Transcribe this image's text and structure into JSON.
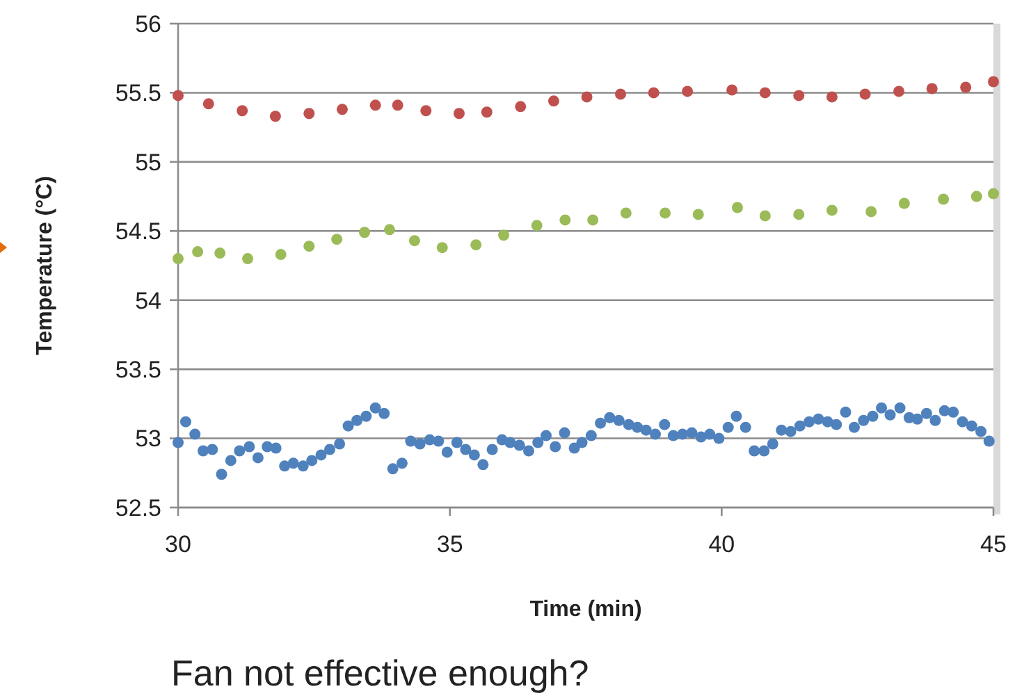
{
  "chart_data": {
    "type": "scatter",
    "xlabel": "Time (min)",
    "ylabel": "Temperature (°C)",
    "annotations": [
      "Fan not effective enough?"
    ],
    "xlim": [
      30,
      45
    ],
    "xticks": [
      30,
      35,
      40,
      45
    ],
    "ylim": [
      52.5,
      56
    ],
    "yticks": [
      52.5,
      53,
      53.5,
      54,
      54.5,
      55,
      55.5,
      56
    ],
    "grid": "y",
    "marker": "circle",
    "series": [
      {
        "color": "#c0504d",
        "x": [
          30,
          30.56,
          31.18,
          31.79,
          32.41,
          33.02,
          33.63,
          34.04,
          34.56,
          35.17,
          35.68,
          36.3,
          36.91,
          37.52,
          38.14,
          38.75,
          39.37,
          40.19,
          40.8,
          41.42,
          42.03,
          42.64,
          43.26,
          43.87,
          44.49,
          45
        ],
        "values": [
          55.48,
          55.42,
          55.37,
          55.33,
          55.35,
          55.38,
          55.41,
          55.41,
          55.37,
          55.35,
          55.36,
          55.4,
          55.44,
          55.47,
          55.49,
          55.5,
          55.51,
          55.52,
          55.5,
          55.48,
          55.47,
          55.49,
          55.51,
          55.53,
          55.54,
          55.58
        ]
      },
      {
        "color": "#9bbb59",
        "x": [
          30,
          30.36,
          30.77,
          31.28,
          31.89,
          32.41,
          32.92,
          33.43,
          33.89,
          34.35,
          34.86,
          35.48,
          35.99,
          36.6,
          37.12,
          37.63,
          38.24,
          38.96,
          39.57,
          40.29,
          40.8,
          41.42,
          42.03,
          42.75,
          43.36,
          44.08,
          44.69,
          45
        ],
        "values": [
          54.3,
          54.35,
          54.34,
          54.3,
          54.33,
          54.39,
          54.44,
          54.49,
          54.51,
          54.43,
          54.38,
          54.4,
          54.47,
          54.54,
          54.58,
          54.58,
          54.63,
          54.63,
          54.62,
          54.67,
          54.61,
          54.62,
          54.65,
          54.64,
          54.7,
          54.73,
          54.75,
          54.77
        ]
      },
      {
        "color": "#4f81bd",
        "x": [
          30,
          30.14,
          30.31,
          30.46,
          30.63,
          30.8,
          30.97,
          31.13,
          31.31,
          31.47,
          31.64,
          31.8,
          31.96,
          32.12,
          32.3,
          32.46,
          32.63,
          32.79,
          32.97,
          33.13,
          33.29,
          33.46,
          33.63,
          33.79,
          33.95,
          34.12,
          34.28,
          34.45,
          34.63,
          34.79,
          34.95,
          35.13,
          35.29,
          35.45,
          35.61,
          35.78,
          35.96,
          36.11,
          36.28,
          36.45,
          36.62,
          36.77,
          36.94,
          37.11,
          37.29,
          37.43,
          37.6,
          37.77,
          37.94,
          38.11,
          38.29,
          38.45,
          38.61,
          38.78,
          38.95,
          39.11,
          39.28,
          39.45,
          39.62,
          39.78,
          39.95,
          40.12,
          40.27,
          40.44,
          40.6,
          40.78,
          40.94,
          41.1,
          41.27,
          41.44,
          41.61,
          41.78,
          41.95,
          42.11,
          42.28,
          42.44,
          42.61,
          42.78,
          42.94,
          43.1,
          43.28,
          43.45,
          43.6,
          43.77,
          43.93,
          44.1,
          44.26,
          44.43,
          44.6,
          44.77,
          44.92
        ],
        "values": [
          52.97,
          53.12,
          53.03,
          52.91,
          52.92,
          52.74,
          52.84,
          52.91,
          52.94,
          52.86,
          52.94,
          52.93,
          52.8,
          52.82,
          52.8,
          52.84,
          52.88,
          52.92,
          52.96,
          53.09,
          53.13,
          53.16,
          53.22,
          53.18,
          52.78,
          52.82,
          52.98,
          52.96,
          52.99,
          52.98,
          52.9,
          52.97,
          52.92,
          52.88,
          52.81,
          52.92,
          52.99,
          52.97,
          52.95,
          52.91,
          52.97,
          53.02,
          52.94,
          53.04,
          52.93,
          52.97,
          53.02,
          53.11,
          53.15,
          53.13,
          53.1,
          53.08,
          53.06,
          53.03,
          53.1,
          53.02,
          53.03,
          53.04,
          53.01,
          53.03,
          53,
          53.08,
          53.16,
          53.08,
          52.91,
          52.91,
          52.96,
          53.06,
          53.05,
          53.09,
          53.12,
          53.14,
          53.12,
          53.1,
          53.19,
          53.08,
          53.13,
          53.16,
          53.22,
          53.17,
          53.22,
          53.15,
          53.14,
          53.18,
          53.13,
          53.2,
          53.19,
          53.12,
          53.09,
          53.05,
          52.98
        ]
      }
    ]
  }
}
